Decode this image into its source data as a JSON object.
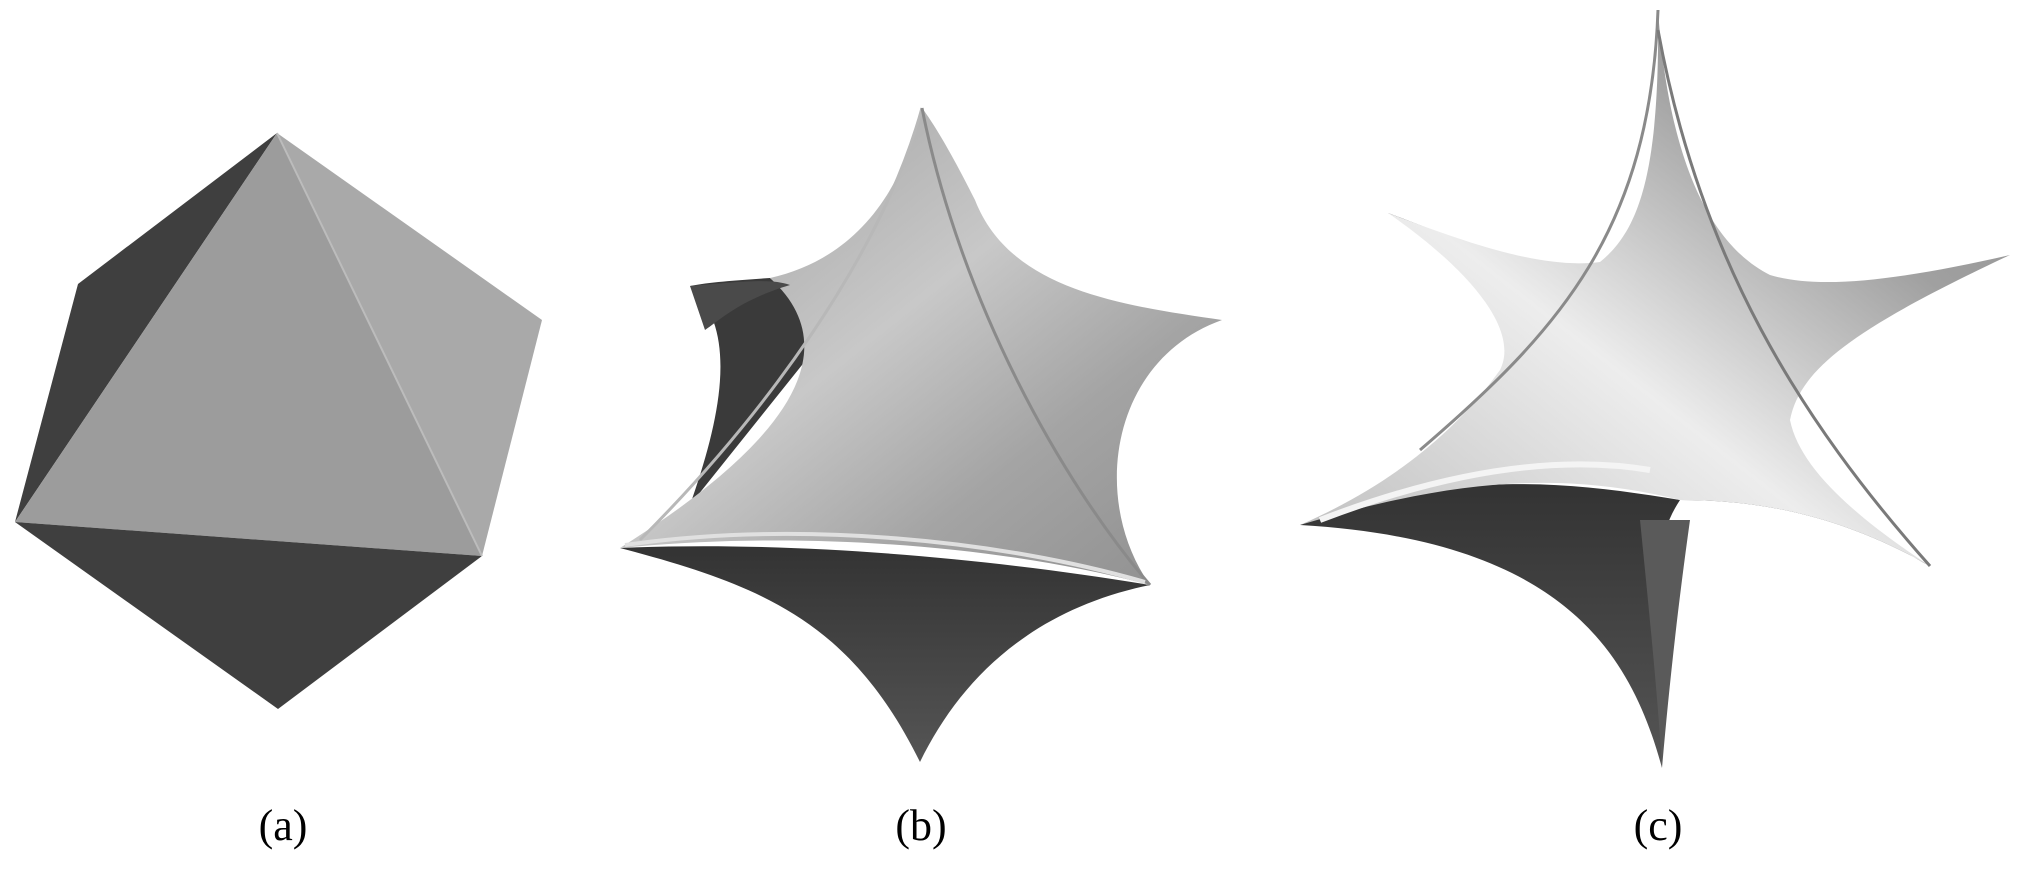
{
  "panels": [
    {
      "caption": "(a)"
    },
    {
      "caption": "(b)"
    },
    {
      "caption": "(c)"
    }
  ],
  "colors": {
    "background": "#ffffff",
    "dark_face": "#3f3f3f",
    "mid_face": "#9c9c9c",
    "light_face": "#a9a9a9",
    "highlight": "#e6e6e6",
    "caption_text": "#000000"
  }
}
